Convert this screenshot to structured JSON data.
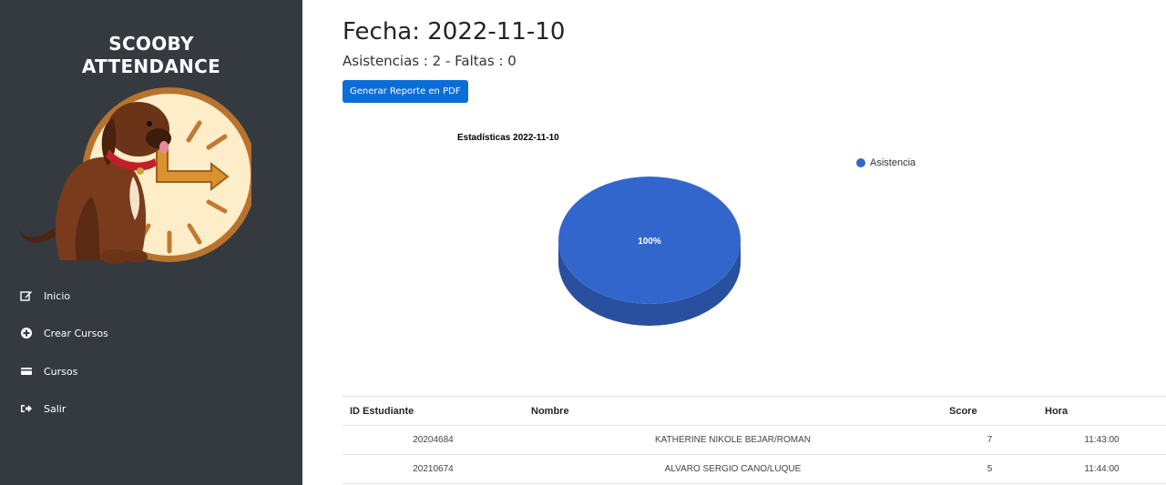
{
  "sidebar": {
    "brand_line1": "SCOOBY",
    "brand_line2": "ATTENDANCE",
    "items": [
      {
        "label": "Inicio",
        "icon": "edit-icon"
      },
      {
        "label": "Crear Cursos",
        "icon": "plus-circle-icon"
      },
      {
        "label": "Cursos",
        "icon": "card-icon"
      },
      {
        "label": "Salir",
        "icon": "sign-out-icon"
      }
    ]
  },
  "header": {
    "title": "Fecha: 2022-11-10",
    "summary": "Asistencias : 2 - Faltas : 0",
    "pdf_button": "Generar Reporte en PDF"
  },
  "chart_data": {
    "type": "pie",
    "title": "Estadísticas 2022-11-10",
    "categories": [
      "Asistencia"
    ],
    "values": [
      100
    ],
    "labels": [
      "100%"
    ],
    "colors": [
      "#3366cc"
    ],
    "legend_position": "right",
    "three_d": true
  },
  "table": {
    "headers": [
      "ID Estudiante",
      "Nombre",
      "Score",
      "Hora"
    ],
    "rows": [
      [
        "20204684",
        "KATHERINE NIKOLE BEJAR/ROMAN",
        "7",
        "11:43:00"
      ],
      [
        "20210674",
        "ALVARO SERGIO CANO/LUQUE",
        "5",
        "11:44:00"
      ]
    ]
  }
}
